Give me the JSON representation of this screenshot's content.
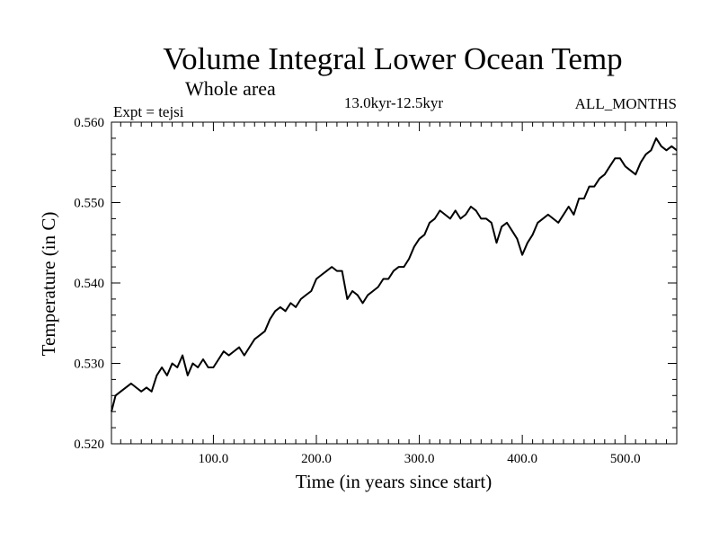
{
  "chart_data": {
    "type": "line",
    "title": "Volume Integral Lower Ocean Temp",
    "subtitle": "Whole area",
    "experiment_label": "Expt = tejsi",
    "period_label": "13.0kyr-12.5kyr",
    "months_label": "ALL_MONTHS",
    "xlabel": "Time (in years since start)",
    "ylabel": "Temperature (in C)",
    "xlim": [
      1,
      550
    ],
    "ylim": [
      0.52,
      0.56
    ],
    "x_ticks": [
      100,
      200,
      300,
      400,
      500
    ],
    "x_tick_labels": [
      "100.0",
      "200.0",
      "300.0",
      "400.0",
      "500.0"
    ],
    "y_ticks": [
      0.52,
      0.53,
      0.54,
      0.55,
      0.56
    ],
    "y_tick_labels": [
      "0.520",
      "0.530",
      "0.540",
      "0.550",
      "0.560"
    ],
    "grid": false,
    "series": [
      {
        "name": "tejsi",
        "color": "#000000",
        "x": [
          1,
          5,
          10,
          15,
          20,
          25,
          30,
          35,
          40,
          45,
          50,
          55,
          60,
          65,
          70,
          75,
          80,
          85,
          90,
          95,
          100,
          105,
          110,
          115,
          120,
          125,
          130,
          135,
          140,
          145,
          150,
          155,
          160,
          165,
          170,
          175,
          180,
          185,
          190,
          195,
          200,
          205,
          210,
          215,
          220,
          225,
          230,
          235,
          240,
          245,
          250,
          255,
          260,
          265,
          270,
          275,
          280,
          285,
          290,
          295,
          300,
          305,
          310,
          315,
          320,
          325,
          330,
          335,
          340,
          345,
          350,
          355,
          360,
          365,
          370,
          375,
          380,
          385,
          390,
          395,
          400,
          405,
          410,
          415,
          420,
          425,
          430,
          435,
          440,
          445,
          450,
          455,
          460,
          465,
          470,
          475,
          480,
          485,
          490,
          495,
          500,
          505,
          510,
          515,
          520,
          525,
          530,
          535,
          540,
          545,
          550
        ],
        "values": [
          0.524,
          0.526,
          0.5265,
          0.527,
          0.5275,
          0.527,
          0.5265,
          0.527,
          0.5265,
          0.5285,
          0.5295,
          0.5285,
          0.53,
          0.5295,
          0.531,
          0.5285,
          0.53,
          0.5295,
          0.5305,
          0.5295,
          0.5295,
          0.5305,
          0.5315,
          0.531,
          0.5315,
          0.532,
          0.531,
          0.532,
          0.533,
          0.5335,
          0.534,
          0.5355,
          0.5365,
          0.537,
          0.5365,
          0.5375,
          0.537,
          0.538,
          0.5385,
          0.539,
          0.5405,
          0.541,
          0.5415,
          0.542,
          0.5415,
          0.5415,
          0.538,
          0.539,
          0.5385,
          0.5375,
          0.5385,
          0.539,
          0.5395,
          0.5405,
          0.5405,
          0.5415,
          0.542,
          0.542,
          0.543,
          0.5445,
          0.5455,
          0.546,
          0.5475,
          0.548,
          0.549,
          0.5485,
          0.548,
          0.549,
          0.548,
          0.5485,
          0.5495,
          0.549,
          0.548,
          0.548,
          0.5475,
          0.545,
          0.547,
          0.5475,
          0.5465,
          0.5455,
          0.5435,
          0.545,
          0.546,
          0.5475,
          0.548,
          0.5485,
          0.548,
          0.5475,
          0.5485,
          0.5495,
          0.5485,
          0.5505,
          0.5505,
          0.552,
          0.552,
          0.553,
          0.5535,
          0.5545,
          0.5555,
          0.5555,
          0.5545,
          0.554,
          0.5535,
          0.555,
          0.556,
          0.5565,
          0.558,
          0.557,
          0.5565,
          0.557,
          0.5565
        ]
      }
    ]
  }
}
